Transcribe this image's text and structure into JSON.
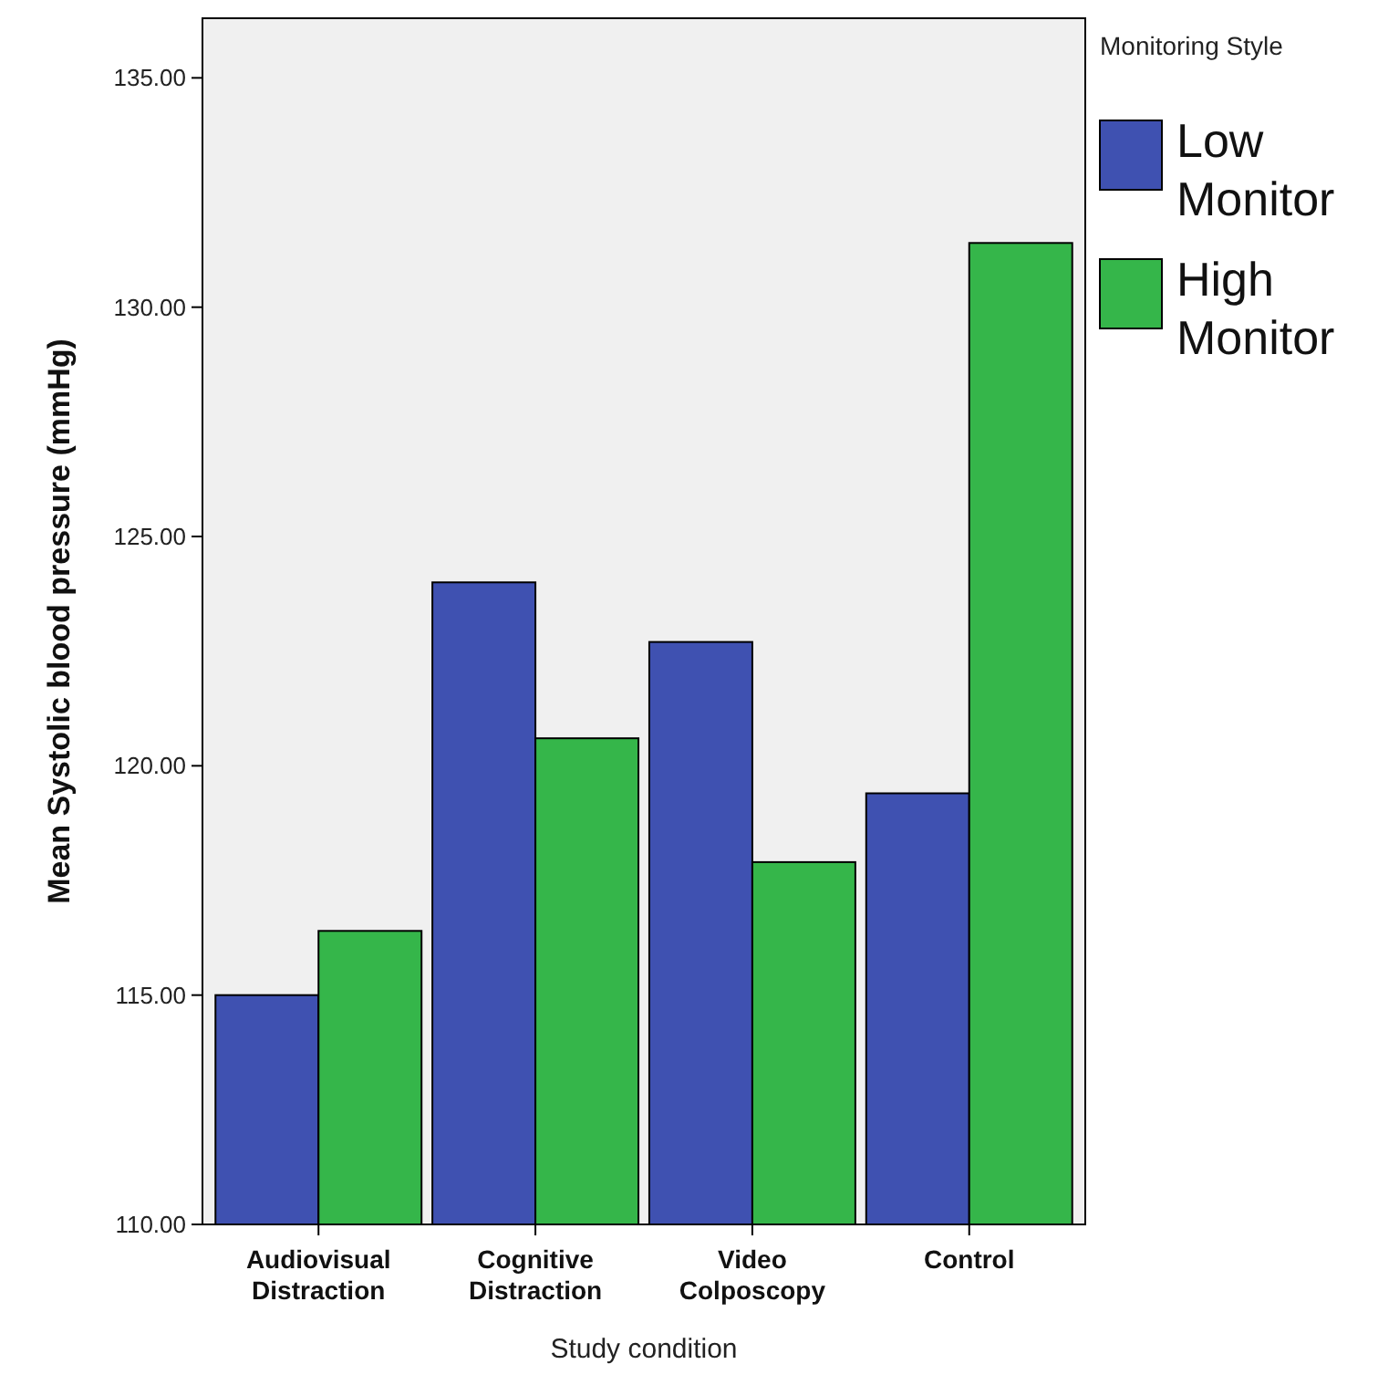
{
  "chart_data": {
    "type": "bar",
    "xlabel": "Study condition",
    "ylabel": "Mean Systolic blood pressure (mmHg)",
    "legend_title": "Monitoring Style",
    "legend": "top right",
    "categories": [
      "Audiovisual Distraction",
      "Cognitive Distraction",
      "Video Colposcopy",
      "Control"
    ],
    "series": [
      {
        "name": "Low Monitor",
        "color": "#3f51b1",
        "values": [
          115.0,
          124.0,
          122.7,
          119.4
        ]
      },
      {
        "name": "High Monitor",
        "color": "#35b64a",
        "values": [
          116.4,
          120.6,
          117.9,
          131.4
        ]
      }
    ],
    "ylim": [
      110,
      136.3
    ],
    "yticks": [
      {
        "value": 110,
        "label": "110.00"
      },
      {
        "value": 115,
        "label": "115.00"
      },
      {
        "value": 120,
        "label": "120.00"
      },
      {
        "value": 125,
        "label": "125.00"
      },
      {
        "value": 130,
        "label": "130.00"
      },
      {
        "value": 135,
        "label": "135.00"
      }
    ]
  }
}
